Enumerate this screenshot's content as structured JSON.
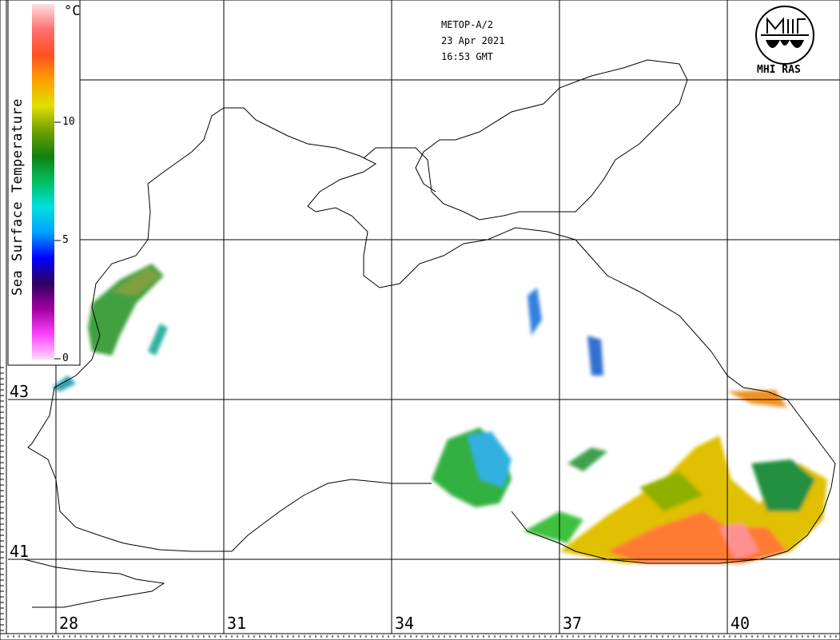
{
  "header": {
    "satellite": "METOP-A/2",
    "date": "23 Apr 2021",
    "time": "16:53 GMT"
  },
  "logo": {
    "text": "MHI RAS",
    "icon": "mhi-logo-icon"
  },
  "colorbar": {
    "title": "Sea Surface Temperature",
    "unit": "°C",
    "ticks": [
      "10",
      "5",
      "0"
    ],
    "range": [
      0,
      15
    ],
    "gradient": [
      "#ffd9ff",
      "#ff40ff",
      "#a000a0",
      "#300060",
      "#0000ff",
      "#00a0ff",
      "#00e0e0",
      "#00c060",
      "#108010",
      "#70a000",
      "#e0e000",
      "#ffa000",
      "#ff5020",
      "#ff7070",
      "#ffe0e0"
    ]
  },
  "axes": {
    "latitude_labels": [
      "43",
      "41"
    ],
    "longitude_labels": [
      "28",
      "31",
      "34",
      "37",
      "40"
    ]
  }
}
